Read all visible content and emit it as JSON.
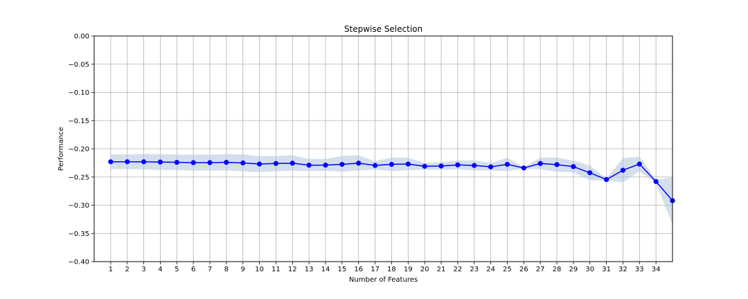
{
  "chart_data": {
    "type": "line",
    "title": "Stepwise Selection",
    "xlabel": "Number of Features",
    "ylabel": "Performance",
    "xlim": [
      0,
      35
    ],
    "ylim": [
      -0.4,
      0.0
    ],
    "grid": true,
    "x_ticks": [
      1,
      2,
      3,
      4,
      5,
      6,
      7,
      8,
      9,
      10,
      11,
      12,
      13,
      14,
      15,
      16,
      17,
      18,
      19,
      20,
      21,
      22,
      23,
      24,
      25,
      26,
      27,
      28,
      29,
      30,
      31,
      32,
      33,
      34
    ],
    "y_ticks": [
      0.0,
      -0.05,
      -0.1,
      -0.15,
      -0.2,
      -0.25,
      -0.3,
      -0.35,
      -0.4
    ],
    "y_tick_labels": [
      "0.00",
      "−0.05",
      "−0.10",
      "−0.15",
      "−0.20",
      "−0.25",
      "−0.30",
      "−0.35",
      "−0.40"
    ],
    "series": [
      {
        "x": [
          1,
          2,
          3,
          4,
          5,
          6,
          7,
          8,
          9,
          10,
          11,
          12,
          13,
          14,
          15,
          16,
          17,
          18,
          19,
          20,
          21,
          22,
          23,
          24,
          25,
          26,
          27,
          28,
          29,
          30,
          31,
          32,
          33,
          34,
          35
        ],
        "values": [
          -0.223,
          -0.223,
          -0.223,
          -0.2235,
          -0.224,
          -0.2245,
          -0.2245,
          -0.224,
          -0.225,
          -0.227,
          -0.226,
          -0.2255,
          -0.229,
          -0.229,
          -0.2275,
          -0.2255,
          -0.2295,
          -0.2275,
          -0.227,
          -0.231,
          -0.2305,
          -0.2285,
          -0.2295,
          -0.232,
          -0.2275,
          -0.234,
          -0.226,
          -0.228,
          -0.2315,
          -0.2425,
          -0.2545,
          -0.238,
          -0.227,
          -0.258,
          -0.292
        ],
        "upper": [
          -0.21,
          -0.21,
          -0.209,
          -0.2095,
          -0.2105,
          -0.2105,
          -0.2105,
          -0.2095,
          -0.21,
          -0.213,
          -0.2125,
          -0.2115,
          -0.218,
          -0.218,
          -0.2125,
          -0.2115,
          -0.222,
          -0.2155,
          -0.216,
          -0.225,
          -0.2235,
          -0.2205,
          -0.2205,
          -0.2255,
          -0.2155,
          -0.2325,
          -0.2155,
          -0.2155,
          -0.221,
          -0.2295,
          -0.2525,
          -0.2165,
          -0.214,
          -0.255,
          -0.2505
        ],
        "lower": [
          -0.236,
          -0.236,
          -0.2365,
          -0.2375,
          -0.2375,
          -0.2385,
          -0.2385,
          -0.2385,
          -0.24,
          -0.2415,
          -0.2395,
          -0.239,
          -0.2395,
          -0.239,
          -0.2405,
          -0.2385,
          -0.237,
          -0.2395,
          -0.238,
          -0.237,
          -0.2375,
          -0.2365,
          -0.2385,
          -0.2385,
          -0.2395,
          -0.2355,
          -0.2365,
          -0.2405,
          -0.2415,
          -0.2555,
          -0.2565,
          -0.2595,
          -0.24,
          -0.261,
          -0.334
        ],
        "color": "#0000ff",
        "band_color": "#b0c4de"
      }
    ]
  }
}
